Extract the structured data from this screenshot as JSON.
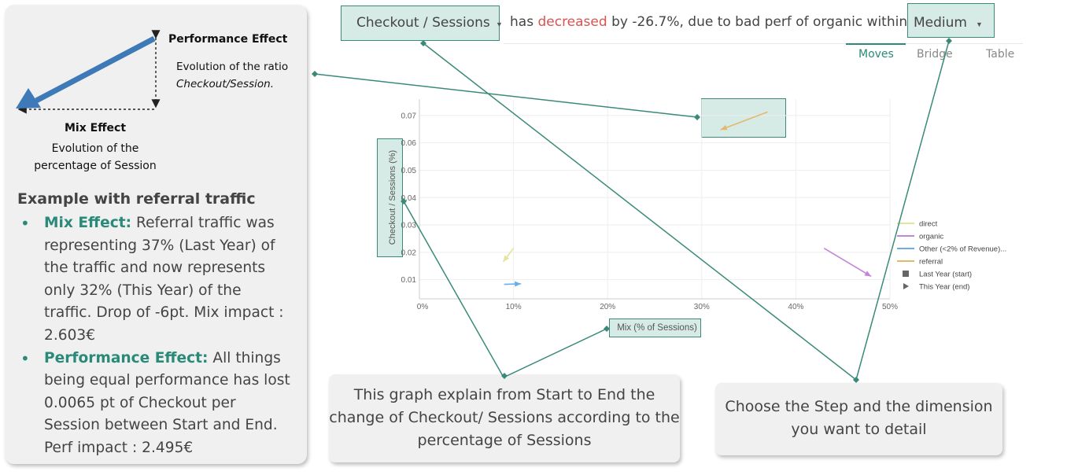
{
  "header": {
    "step_dropdown": "Checkout / Sessions",
    "sentence_prefix": "has",
    "sentence_trend": "decreased",
    "sentence_suffix": "by -26.7%, due to bad perf of organic within",
    "dimension_dropdown": "Medium"
  },
  "tabs": [
    {
      "label": "Moves",
      "active": true
    },
    {
      "label": "Bridge",
      "active": false
    },
    {
      "label": "Table",
      "active": false
    }
  ],
  "left_panel": {
    "performance_effect_title": "Performance Effect",
    "performance_effect_line1": "Evolution of the ratio",
    "performance_effect_line2": "Checkout/Session.",
    "mix_effect_title": "Mix Effect",
    "mix_effect_desc": "Evolution of the percentage of Session",
    "example_title": "Example with referral traffic",
    "bullets": [
      {
        "keyword": "Mix Effect:",
        "text": "Referral traffic was representing 37% (Last Year) of the traffic and now represents only 32% (This Year) of the traffic. Drop of -6pt. Mix impact : 2.603€"
      },
      {
        "keyword": "Performance Effect:",
        "text": "All things being equal performance has lost 0.0065 pt of Checkout per Session between Start and End. Perf impact : 2.495€"
      }
    ]
  },
  "callouts": {
    "graph": "This graph explain from Start to End the change of Checkout/ Sessions according to the percentage of Sessions",
    "step": "Choose the Step and the dimension you want to detail"
  },
  "colors": {
    "accent": "#2a8a7a",
    "highlight_fill": "#d6ebe6",
    "decreased": "#d9534f",
    "panel_bg": "#f0f0f0"
  },
  "icons": [
    "caret-down-icon",
    "caret-down-icon",
    "square-marker-icon",
    "triangle-marker-icon"
  ],
  "chart_data": {
    "type": "scatter",
    "xlabel": "Mix (% of Sessions)",
    "ylabel": "Checkout / Sessions (%)",
    "x_ticks": [
      "0%",
      "10%",
      "20%",
      "30%",
      "40%",
      "50%"
    ],
    "y_ticks": [
      "0.01",
      "0.02",
      "0.03",
      "0.04",
      "0.05",
      "0.06",
      "0.07"
    ],
    "xlim": [
      0,
      0.5
    ],
    "ylim": [
      0.003,
      0.076
    ],
    "grid": true,
    "legend_position": "right",
    "series": [
      {
        "name": "direct",
        "color": "#e3e69a",
        "start": {
          "x": 0.1,
          "y": 0.0215
        },
        "end": {
          "x": 0.089,
          "y": 0.0165
        }
      },
      {
        "name": "organic",
        "color": "#c584d9",
        "start": {
          "x": 0.43,
          "y": 0.0215
        },
        "end": {
          "x": 0.48,
          "y": 0.0112
        }
      },
      {
        "name": "Other (<2% of Revenue)...",
        "color": "#6aaee8",
        "start": {
          "x": 0.09,
          "y": 0.0083
        },
        "end": {
          "x": 0.108,
          "y": 0.0085
        }
      },
      {
        "name": "referral",
        "color": "#e3b96c",
        "start": {
          "x": 0.37,
          "y": 0.0713
        },
        "end": {
          "x": 0.32,
          "y": 0.0648
        }
      }
    ],
    "marker_legend": [
      {
        "label": "Last Year (start)",
        "marker": "square"
      },
      {
        "label": "This Year (end)",
        "marker": "triangle"
      }
    ]
  }
}
